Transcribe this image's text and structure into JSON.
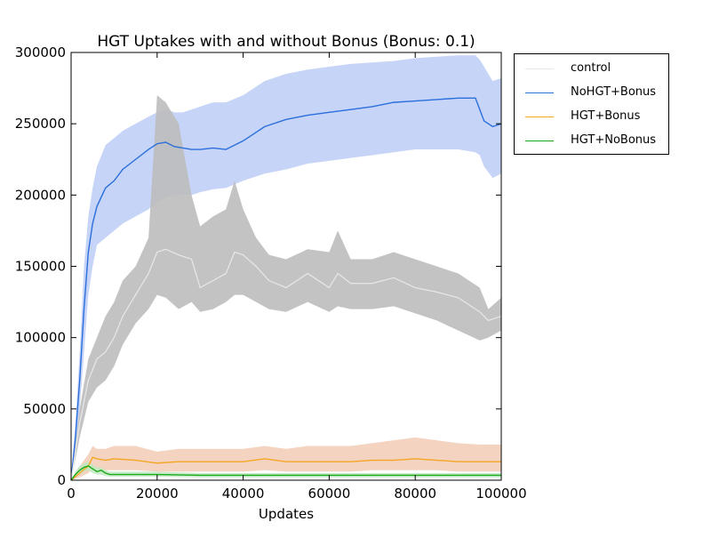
{
  "chart_data": {
    "type": "line",
    "title": "HGT Uptakes with and without Bonus (Bonus: 0.1)",
    "xlabel": "Updates",
    "ylabel": "",
    "xlim": [
      0,
      100000
    ],
    "ylim": [
      0,
      300000
    ],
    "x_ticks": [
      "0",
      "20000",
      "40000",
      "60000",
      "80000",
      "100000"
    ],
    "y_ticks": [
      "0",
      "50000",
      "100000",
      "150000",
      "200000",
      "250000",
      "300000"
    ],
    "grid": false,
    "legend_position": "outside-top-right",
    "series": [
      {
        "name": "control",
        "color": "#e8e8e8",
        "band_color": "#bdbdbd",
        "x": [
          0,
          2000,
          4000,
          6000,
          8000,
          10000,
          12000,
          15000,
          18000,
          20000,
          22000,
          25000,
          28000,
          30000,
          33000,
          36000,
          38000,
          40000,
          43000,
          46000,
          50000,
          55000,
          60000,
          62000,
          65000,
          70000,
          75000,
          80000,
          85000,
          90000,
          95000,
          97000,
          100000
        ],
        "values": [
          0,
          40000,
          70000,
          85000,
          90000,
          100000,
          115000,
          130000,
          145000,
          160000,
          162000,
          158000,
          155000,
          135000,
          140000,
          145000,
          160000,
          158000,
          150000,
          140000,
          135000,
          145000,
          135000,
          145000,
          138000,
          138000,
          142000,
          135000,
          132000,
          128000,
          118000,
          112000,
          115000
        ],
        "lower": [
          0,
          30000,
          55000,
          65000,
          70000,
          80000,
          95000,
          110000,
          120000,
          130000,
          128000,
          120000,
          125000,
          118000,
          120000,
          125000,
          130000,
          130000,
          125000,
          120000,
          118000,
          125000,
          118000,
          122000,
          120000,
          120000,
          122000,
          117000,
          112000,
          105000,
          98000,
          100000,
          105000
        ],
        "upper": [
          0,
          50000,
          85000,
          100000,
          115000,
          125000,
          140000,
          150000,
          170000,
          270000,
          265000,
          250000,
          200000,
          178000,
          185000,
          190000,
          210000,
          190000,
          170000,
          158000,
          155000,
          162000,
          160000,
          175000,
          155000,
          155000,
          160000,
          155000,
          150000,
          145000,
          135000,
          120000,
          128000
        ]
      },
      {
        "name": "NoHGT+Bonus",
        "color": "#2a6fdb",
        "band_color": "#bccdf6",
        "x": [
          0,
          1000,
          2000,
          3000,
          4000,
          5000,
          6000,
          8000,
          10000,
          12000,
          15000,
          18000,
          20000,
          22000,
          24000,
          26000,
          28000,
          30000,
          33000,
          36000,
          40000,
          45000,
          50000,
          55000,
          60000,
          65000,
          70000,
          75000,
          80000,
          85000,
          90000,
          94000,
          95000,
          96000,
          98000,
          100000
        ],
        "values": [
          0,
          30000,
          70000,
          120000,
          160000,
          180000,
          192000,
          205000,
          210000,
          218000,
          225000,
          232000,
          236000,
          237000,
          234000,
          233000,
          232000,
          232000,
          233000,
          232000,
          238000,
          248000,
          253000,
          256000,
          258000,
          260000,
          262000,
          265000,
          266000,
          267000,
          268000,
          268000,
          260000,
          252000,
          248000,
          250000
        ],
        "lower": [
          0,
          20000,
          50000,
          90000,
          130000,
          150000,
          165000,
          170000,
          175000,
          180000,
          185000,
          190000,
          195000,
          198000,
          200000,
          200000,
          200000,
          202000,
          204000,
          205000,
          210000,
          215000,
          218000,
          222000,
          224000,
          226000,
          228000,
          230000,
          232000,
          232000,
          232000,
          230000,
          228000,
          220000,
          212000,
          215000
        ],
        "upper": [
          0,
          40000,
          90000,
          150000,
          185000,
          205000,
          220000,
          235000,
          240000,
          245000,
          250000,
          255000,
          258000,
          260000,
          258000,
          258000,
          260000,
          262000,
          265000,
          265000,
          270000,
          280000,
          285000,
          288000,
          290000,
          292000,
          293000,
          294000,
          296000,
          297000,
          298000,
          298000,
          295000,
          290000,
          280000,
          282000
        ]
      },
      {
        "name": "HGT+Bonus",
        "color": "#f5a623",
        "band_color": "#f2cbb5",
        "x": [
          0,
          2000,
          4000,
          5000,
          6000,
          8000,
          10000,
          15000,
          20000,
          25000,
          30000,
          35000,
          40000,
          45000,
          50000,
          55000,
          60000,
          65000,
          70000,
          75000,
          80000,
          85000,
          90000,
          95000,
          100000
        ],
        "values": [
          0,
          5000,
          10000,
          16000,
          15000,
          14000,
          15000,
          14000,
          12000,
          13000,
          13000,
          13000,
          13000,
          15000,
          13000,
          13000,
          13000,
          13000,
          14000,
          14000,
          15000,
          14000,
          13000,
          13000,
          13000
        ],
        "lower": [
          0,
          2000,
          5000,
          8000,
          8000,
          7000,
          7000,
          7000,
          6000,
          6000,
          6000,
          6000,
          6000,
          7000,
          6000,
          6000,
          6000,
          6000,
          7000,
          7000,
          7000,
          7000,
          6000,
          6000,
          6000
        ],
        "upper": [
          0,
          10000,
          18000,
          24000,
          22000,
          22000,
          24000,
          24000,
          20000,
          22000,
          22000,
          22000,
          22000,
          24000,
          22000,
          24000,
          24000,
          24000,
          26000,
          28000,
          30000,
          28000,
          26000,
          25000,
          25000
        ]
      },
      {
        "name": "HGT+NoBonus",
        "color": "#1aaa1a",
        "band_color": "#bfe8bf",
        "x": [
          0,
          1000,
          2000,
          3000,
          4000,
          5000,
          6000,
          7000,
          8000,
          9000,
          10000,
          20000,
          30000,
          40000,
          50000,
          60000,
          70000,
          80000,
          90000,
          100000
        ],
        "values": [
          0,
          4000,
          7000,
          9000,
          10000,
          8000,
          6000,
          7000,
          5000,
          4000,
          4000,
          4000,
          3500,
          3500,
          3500,
          3500,
          3500,
          3500,
          3500,
          3500
        ],
        "lower": [
          0,
          2000,
          4000,
          6000,
          7000,
          5000,
          4000,
          4000,
          3000,
          2500,
          2500,
          2500,
          2000,
          2000,
          2000,
          2000,
          2000,
          2000,
          2000,
          2000
        ],
        "upper": [
          0,
          6000,
          10000,
          12000,
          13000,
          11000,
          9000,
          9000,
          7000,
          6000,
          6000,
          6000,
          5000,
          5000,
          5000,
          5000,
          5000,
          5000,
          5000,
          5000
        ]
      }
    ]
  }
}
